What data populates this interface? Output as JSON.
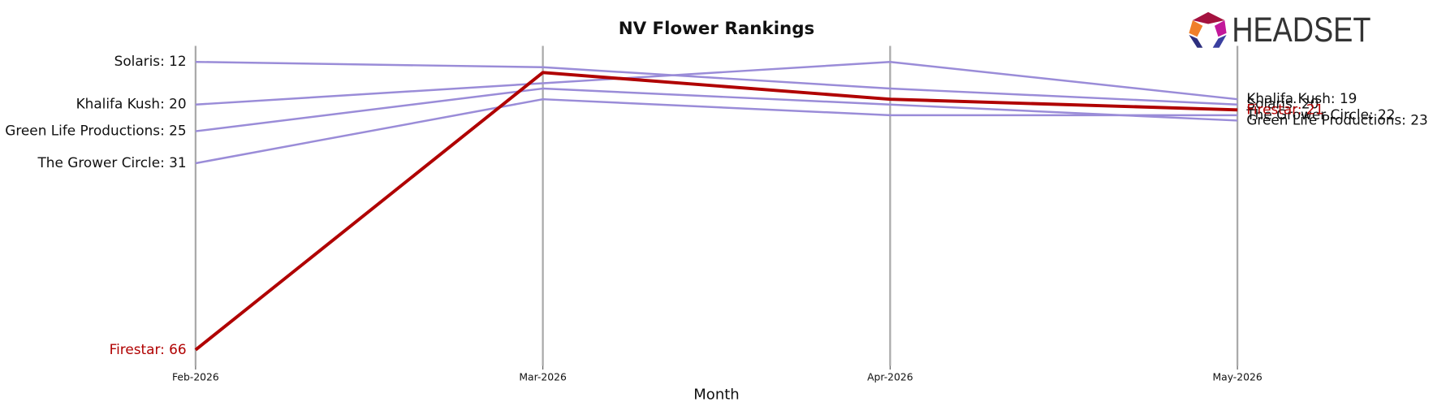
{
  "logo": "HEADSET",
  "chart_data": {
    "type": "line",
    "title": "NV Flower Rankings",
    "x_label": "Month",
    "categories": [
      "Feb-2026",
      "Mar-2026",
      "Apr-2026",
      "May-2026"
    ],
    "ylim": [
      9,
      69
    ],
    "y_inverted": true,
    "grid": true,
    "series": [
      {
        "name": "Solaris",
        "color": "#9a8cd8",
        "values": [
          12,
          13,
          17,
          20
        ],
        "value_labels": [
          "Solaris: 12",
          null,
          null,
          "Solaris: 20"
        ]
      },
      {
        "name": "Khalifa Kush",
        "color": "#9a8cd8",
        "values": [
          20,
          16,
          12,
          19
        ],
        "value_labels": [
          "Khalifa Kush: 20",
          null,
          null,
          "Khalifa Kush: 19"
        ]
      },
      {
        "name": "Green Life Productions",
        "color": "#9a8cd8",
        "values": [
          25,
          17,
          20,
          23
        ],
        "value_labels": [
          "Green Life Productions: 25",
          null,
          null,
          "Green Life Productions: 23"
        ]
      },
      {
        "name": "The Grower Circle",
        "color": "#9a8cd8",
        "values": [
          31,
          19,
          22,
          22
        ],
        "value_labels": [
          "The Grower Circle: 31",
          null,
          null,
          "The Grower Circle: 22"
        ]
      },
      {
        "name": "Firestar",
        "color": "#b00000",
        "highlight": true,
        "values": [
          66,
          14,
          19,
          21
        ],
        "value_labels": [
          "Firestar: 66",
          null,
          null,
          "Firestar: 21"
        ]
      }
    ]
  }
}
